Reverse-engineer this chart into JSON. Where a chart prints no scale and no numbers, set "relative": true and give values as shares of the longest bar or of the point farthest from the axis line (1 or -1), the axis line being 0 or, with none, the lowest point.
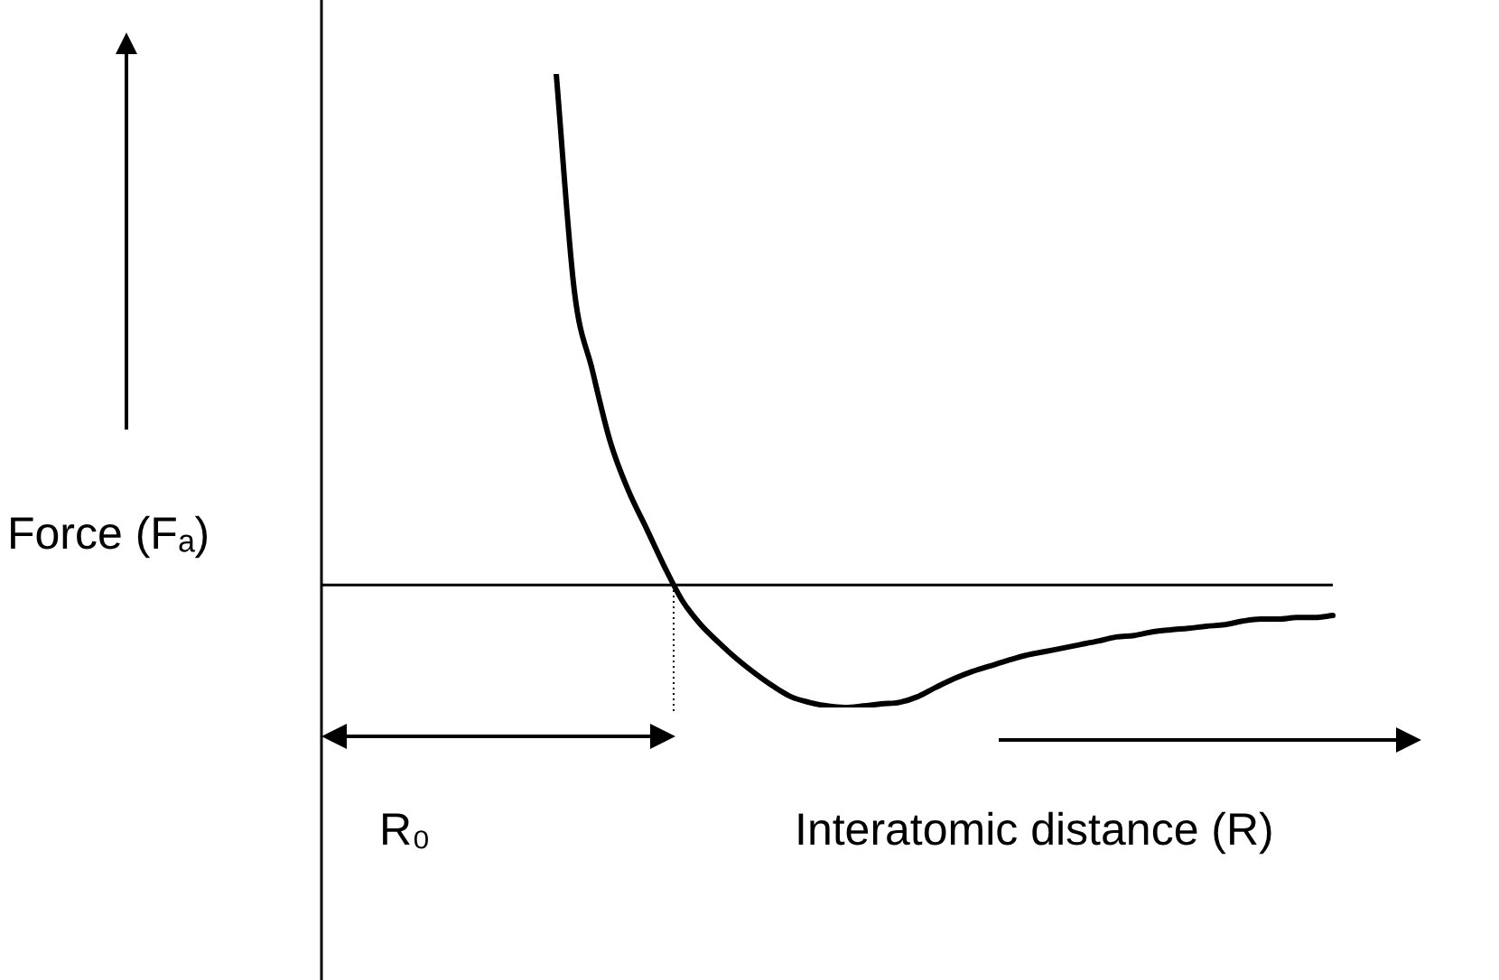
{
  "chart_data": {
    "type": "line",
    "relative": true,
    "marker": "none",
    "color": "#000000",
    "xlabel": "Interatomic distance (R)",
    "ylabel": "Force (Fₐ)",
    "annotations": [
      "R₀"
    ],
    "categories": [
      null,
      null,
      null,
      null,
      null,
      null,
      null,
      null,
      null,
      null,
      null,
      null,
      null,
      null,
      null,
      null,
      null,
      null,
      null,
      null,
      null,
      null,
      null,
      null,
      null,
      null,
      null,
      null,
      null,
      null,
      null,
      null,
      null,
      null,
      null,
      null,
      null,
      null,
      null,
      null,
      null,
      null,
      null,
      null,
      null,
      null,
      null,
      null,
      null,
      null,
      null,
      null,
      null,
      null,
      null,
      null,
      null
    ],
    "values": [
      null,
      null,
      null,
      null,
      null,
      null,
      null,
      null,
      null,
      null,
      null,
      null,
      null,
      1.0,
      0.576,
      0.42,
      0.279,
      0.184,
      0.11,
      0.035,
      -0.032,
      -0.078,
      -0.113,
      -0.145,
      -0.173,
      -0.198,
      -0.219,
      -0.23,
      -0.237,
      -0.24,
      -0.237,
      -0.233,
      -0.23,
      -0.219,
      -0.201,
      -0.184,
      -0.17,
      -0.159,
      -0.148,
      -0.138,
      -0.131,
      -0.124,
      -0.117,
      -0.11,
      -0.102,
      -0.099,
      -0.092,
      -0.088,
      -0.085,
      -0.081,
      -0.078,
      -0.071,
      -0.067,
      -0.067,
      -0.064,
      -0.064,
      -0.06
    ]
  }
}
